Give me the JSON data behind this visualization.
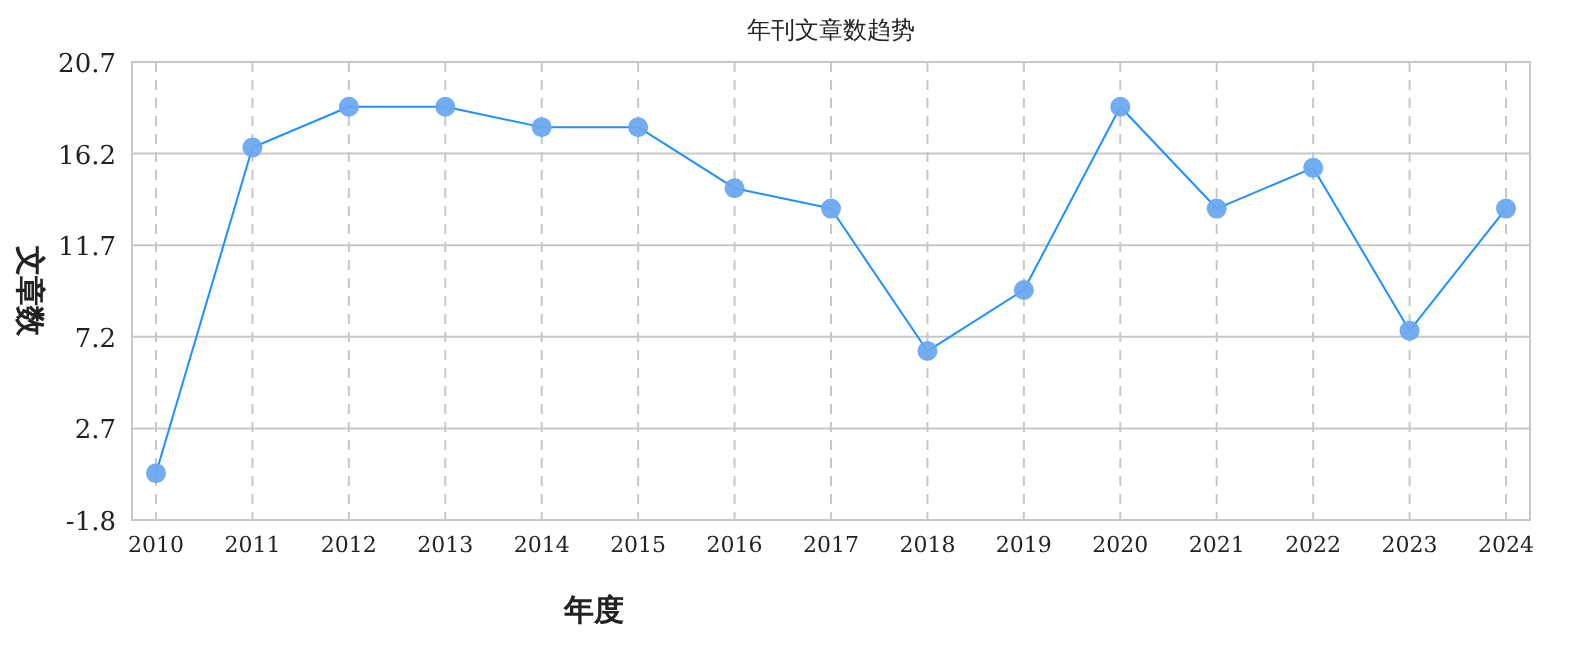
{
  "chart_data": {
    "type": "line",
    "title": "年刊文章数趋势",
    "xlabel": "年度",
    "ylabel": "文章数",
    "categories": [
      "2010",
      "2011",
      "2012",
      "2013",
      "2014",
      "2015",
      "2016",
      "2017",
      "2018",
      "2019",
      "2020",
      "2021",
      "2022",
      "2023",
      "2024"
    ],
    "series": [
      {
        "color": "#1e90ff",
        "values": [
          0.5,
          16.5,
          18.5,
          18.5,
          17.5,
          17.5,
          14.5,
          13.5,
          6.5,
          9.5,
          18.5,
          13.5,
          15.5,
          7.5,
          13.5
        ]
      }
    ],
    "ylim": [
      -1.8,
      20.7
    ],
    "yticks": [
      -1.8,
      2.7,
      7.2,
      11.7,
      16.2,
      20.7
    ],
    "grid": true,
    "marker": "circle"
  }
}
